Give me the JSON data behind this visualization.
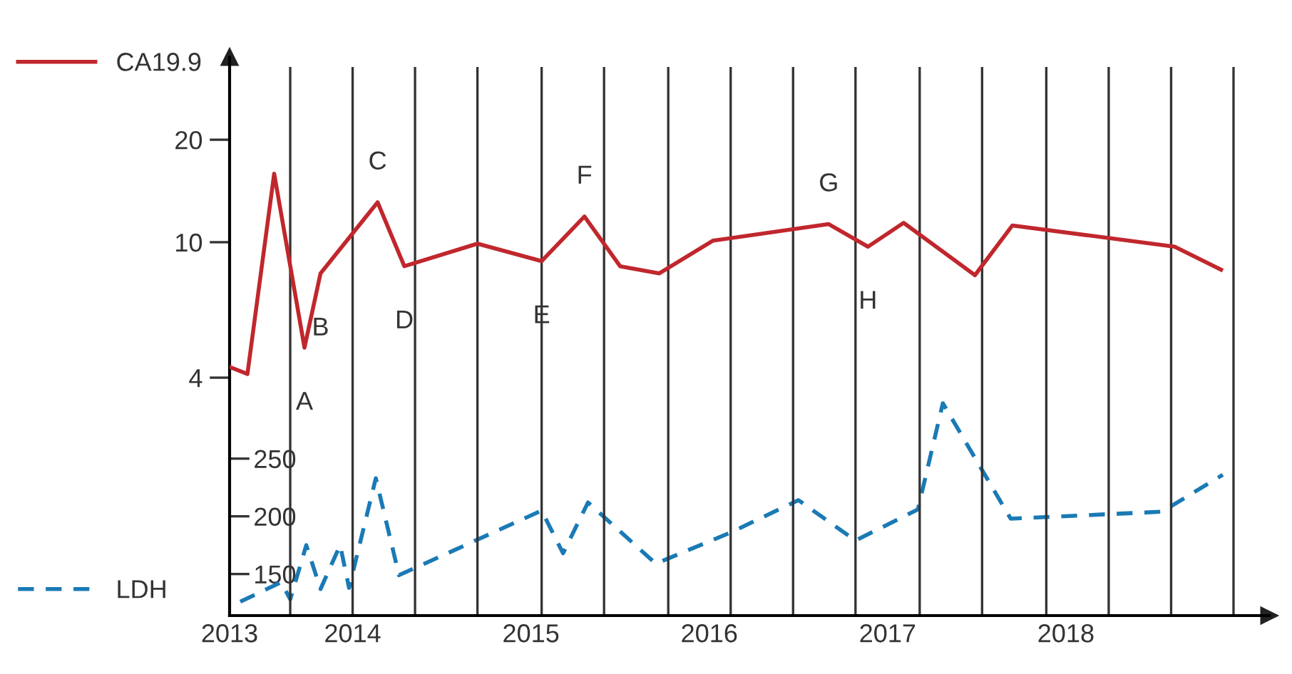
{
  "chart_data": {
    "type": "line",
    "log": "y",
    "legend": "left",
    "grid": false,
    "xlim": [
      2013.31,
      2019.14
    ],
    "xticks": [
      {
        "value": 2013.31,
        "label": "2013"
      },
      2014,
      2015,
      2016,
      2017,
      2018
    ],
    "ylim": [
      0.8,
      35
    ],
    "yticks": [
      4,
      10,
      20
    ],
    "y2lim": [
      114,
      598
    ],
    "y2ticks": [
      150,
      200,
      250
    ],
    "series": [
      {
        "name": "CA19.9",
        "color": "#c0272d",
        "line_style": "solid",
        "x": [
          2013.31,
          2013.41,
          2013.56,
          2013.73,
          2013.82,
          2014.14,
          2014.29,
          2014.7,
          2015.06,
          2015.3,
          2015.5,
          2015.72,
          2016.02,
          2016.67,
          2016.89,
          2017.09,
          2017.49,
          2017.7,
          2018.61,
          2018.87
        ],
        "values": [
          4.3,
          4.1,
          15.9,
          4.9,
          8.1,
          13.1,
          8.5,
          9.9,
          8.8,
          11.9,
          8.5,
          8.1,
          10.1,
          11.3,
          9.7,
          11.4,
          8.0,
          11.2,
          9.7,
          8.3
        ]
      },
      {
        "name": "LDH",
        "color": "#1a7ab5",
        "line_style": "dashed",
        "axis": "y2",
        "x": [
          2013.37,
          2013.6,
          2013.65,
          2013.74,
          2013.82,
          2013.93,
          2013.98,
          2014.13,
          2014.26,
          2015.06,
          2015.18,
          2015.32,
          2015.7,
          2016.12,
          2016.5,
          2016.82,
          2017.17,
          2017.31,
          2017.69,
          2018.54,
          2018.88
        ],
        "values": [
          126,
          143,
          128,
          175,
          137,
          175,
          138,
          233,
          149,
          205,
          168,
          212,
          159,
          186,
          214,
          179,
          206,
          298,
          198,
          204,
          236
        ]
      }
    ],
    "ref_lines": [
      {
        "axis": "x",
        "value": 2013.65,
        "color": "#333333"
      },
      {
        "axis": "x",
        "value": 2014.0,
        "color": "#333333"
      },
      {
        "axis": "x",
        "value": 2014.35,
        "color": "#333333"
      },
      {
        "axis": "x",
        "value": 2014.7,
        "color": "#333333"
      },
      {
        "axis": "x",
        "value": 2015.06,
        "color": "#333333"
      },
      {
        "axis": "x",
        "value": 2015.41,
        "color": "#333333"
      },
      {
        "axis": "x",
        "value": 2015.77,
        "color": "#333333"
      },
      {
        "axis": "x",
        "value": 2016.12,
        "color": "#333333"
      },
      {
        "axis": "x",
        "value": 2016.47,
        "color": "#333333"
      },
      {
        "axis": "x",
        "value": 2016.82,
        "color": "#333333"
      },
      {
        "axis": "x",
        "value": 2017.18,
        "color": "#333333"
      },
      {
        "axis": "x",
        "value": 2017.53,
        "color": "#333333"
      },
      {
        "axis": "x",
        "value": 2017.89,
        "color": "#333333"
      },
      {
        "axis": "x",
        "value": 2018.24,
        "color": "#333333"
      },
      {
        "axis": "x",
        "value": 2018.59,
        "color": "#333333"
      },
      {
        "axis": "x",
        "value": 2018.94,
        "color": "#333333"
      }
    ],
    "annotations": [
      {
        "text": "A",
        "x": 2013.73,
        "y": 4.9
      },
      {
        "text": "B",
        "x": 2013.82,
        "y": 8.1
      },
      {
        "text": "C",
        "x": 2014.14,
        "y": 13.1
      },
      {
        "text": "D",
        "x": 2014.29,
        "y": 8.5
      },
      {
        "text": "E",
        "x": 2015.06,
        "y": 8.8
      },
      {
        "text": "F",
        "x": 2015.3,
        "y": 11.9
      },
      {
        "text": "G",
        "x": 2016.67,
        "y": 11.3
      },
      {
        "text": "H",
        "x": 2016.89,
        "y": 9.7
      }
    ]
  }
}
